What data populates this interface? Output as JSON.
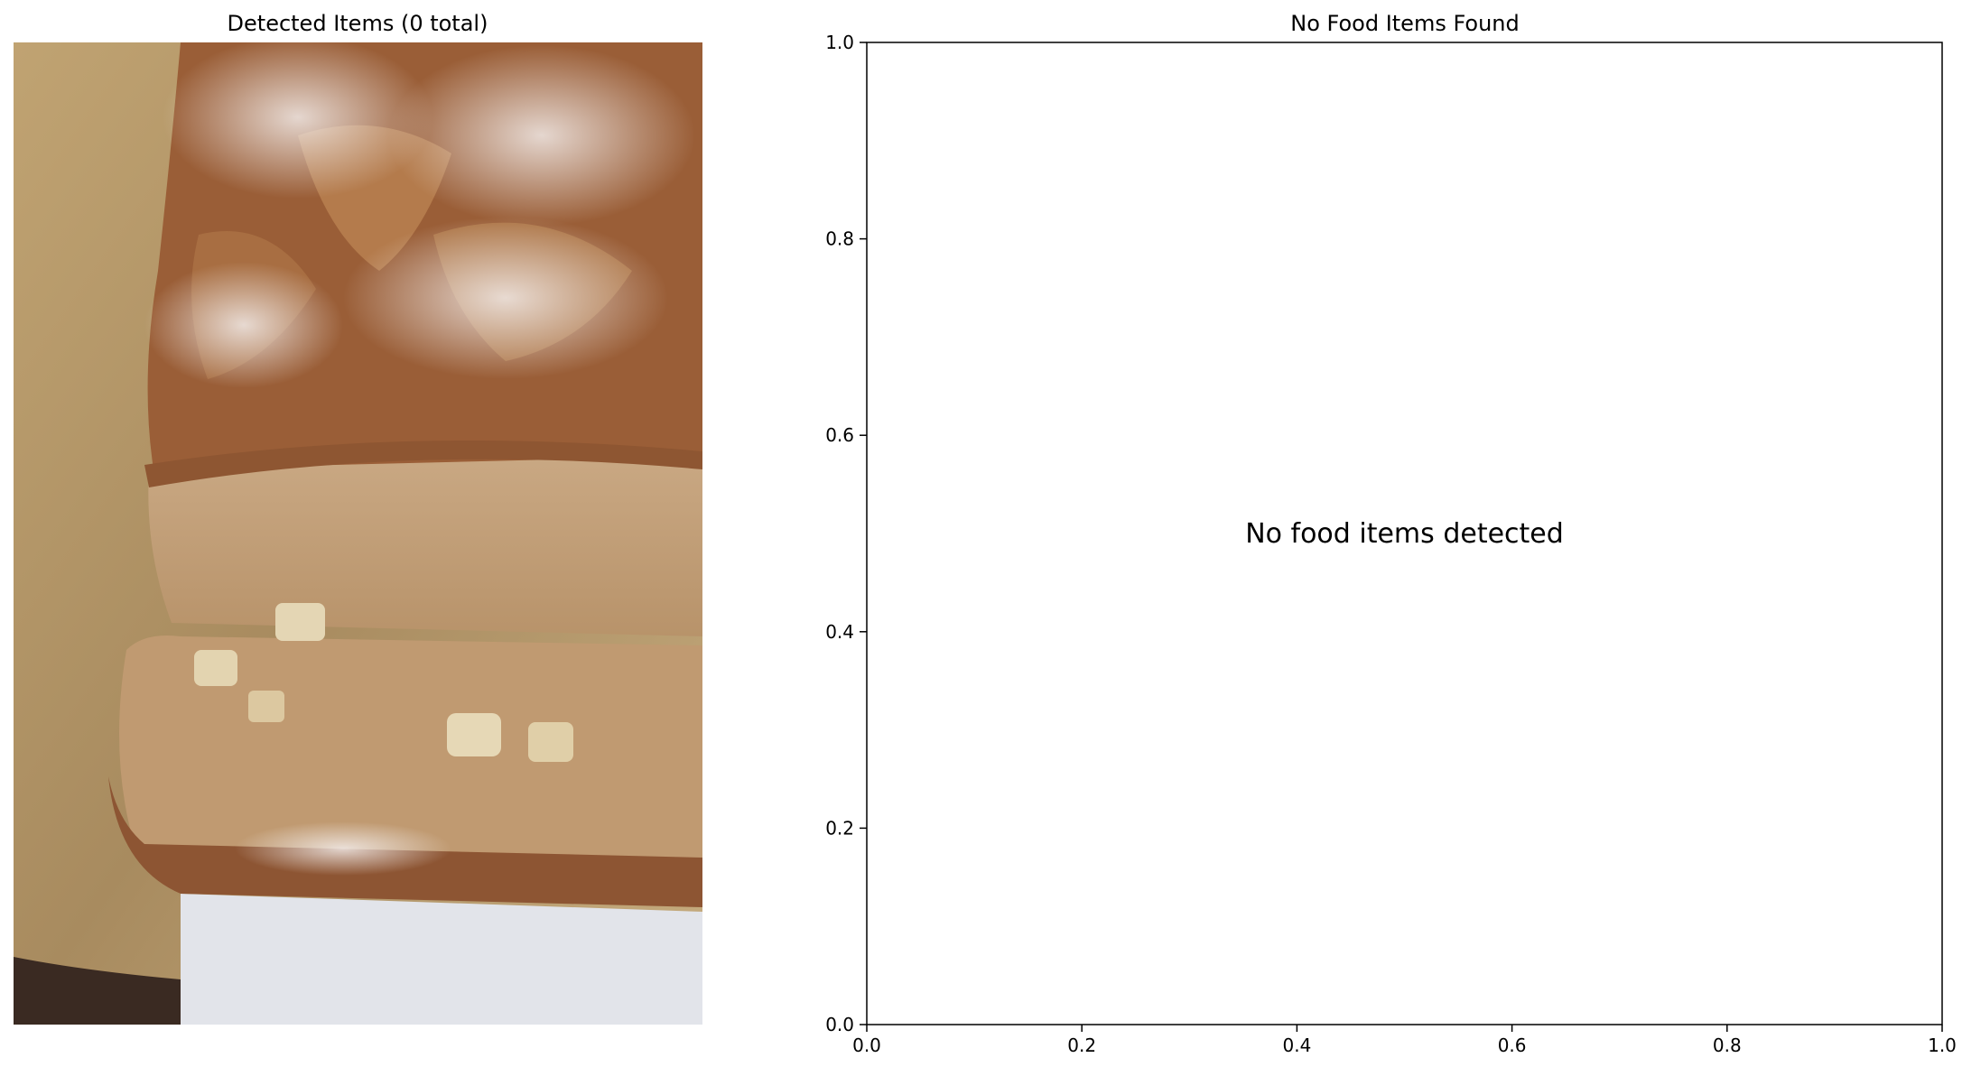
{
  "chart_data": [
    {
      "type": "image",
      "title": "Detected Items (0 total)",
      "image_subject": "loaf of cinnamon-sugar bread with a slice cut",
      "axes_visible": false
    },
    {
      "type": "scatter",
      "title": "No Food Items Found",
      "x": [],
      "y": [],
      "xlim": [
        0,
        1
      ],
      "ylim": [
        0,
        1
      ],
      "xticks": [
        "0.0",
        "0.2",
        "0.4",
        "0.6",
        "0.8",
        "1.0"
      ],
      "yticks": [
        "0.0",
        "0.2",
        "0.4",
        "0.6",
        "0.8",
        "1.0"
      ],
      "annotation": {
        "text": "No food items detected",
        "x": 0.5,
        "y": 0.5
      },
      "grid": false,
      "xlabel": "",
      "ylabel": ""
    }
  ],
  "colors": {
    "crust_dark": "#8a5230",
    "crust_light": "#b07a50",
    "crumb": "#c4a27c",
    "sugar": "#e8e0e0",
    "foil": "#b89a6c",
    "paper": "#e2e4ea",
    "tray": "#3a2a22"
  }
}
